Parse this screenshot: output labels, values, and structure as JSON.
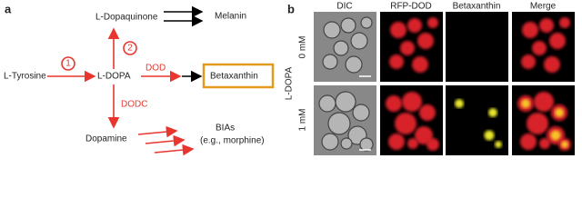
{
  "panel_a": {
    "label": "a",
    "nodes": [
      {
        "label": "L-Dopaquinone"
      },
      {
        "label": "Melanin"
      },
      {
        "label": "L-Tyrosine"
      },
      {
        "label": "L-DOPA"
      },
      {
        "label": "Betaxanthin"
      },
      {
        "label": "Dopamine"
      },
      {
        "label": "BIAs"
      },
      {
        "label": "(e.g., morphine)"
      }
    ],
    "edges": [
      {
        "label": "1"
      },
      {
        "label": "2"
      },
      {
        "label": "DOD"
      },
      {
        "label": "DODC"
      }
    ]
  },
  "panel_b": {
    "label": "b",
    "columns": [
      "DIC",
      "RFP-DOD",
      "Betaxanthin",
      "Merge"
    ],
    "row_axis_label": "L-DOPA",
    "rows": [
      "0 mM",
      "1 mM"
    ]
  }
}
